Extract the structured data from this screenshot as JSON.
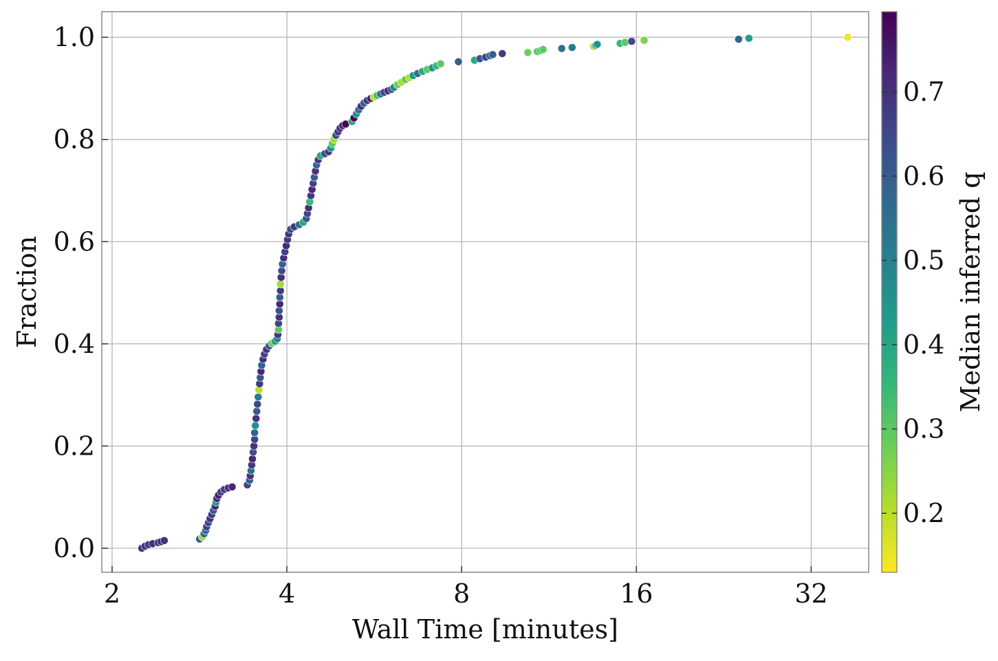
{
  "chart_data": {
    "type": "scatter",
    "xlabel": "Wall Time [minutes]",
    "ylabel": "Fraction",
    "x_scale": "log2",
    "xlim": [
      1.92,
      40.2
    ],
    "ylim": [
      -0.047,
      1.05
    ],
    "x_ticks": [
      2,
      4,
      8,
      16,
      32
    ],
    "x_tick_labels": [
      "2",
      "4",
      "8",
      "16",
      "32"
    ],
    "y_ticks": [
      0.0,
      0.2,
      0.4,
      0.6,
      0.8,
      1.0
    ],
    "y_tick_labels": [
      "0.0",
      "0.2",
      "0.4",
      "0.6",
      "0.8",
      "1.0"
    ],
    "grid": true,
    "colorbar": {
      "label": "Median inferred q",
      "colormap": "viridis_r",
      "range": [
        0.13,
        0.795
      ],
      "ticks": [
        0.2,
        0.3,
        0.4,
        0.5,
        0.6,
        0.7
      ],
      "tick_labels": [
        "0.2",
        "0.3",
        "0.4",
        "0.5",
        "0.6",
        "0.7"
      ]
    },
    "colormap_stops": [
      "#fde725",
      "#b5de2b",
      "#6ece58",
      "#35b779",
      "#1f9e89",
      "#26828e",
      "#31688e",
      "#3e4989",
      "#482878",
      "#440154"
    ],
    "series": [
      {
        "points": [
          [
            2.25,
            0.0,
            0.68
          ],
          [
            2.28,
            0.004,
            0.7
          ],
          [
            2.31,
            0.007,
            0.67
          ],
          [
            2.35,
            0.009,
            0.71
          ],
          [
            2.4,
            0.011,
            0.69
          ],
          [
            2.43,
            0.013,
            0.72
          ],
          [
            2.46,
            0.015,
            0.7
          ],
          [
            2.83,
            0.018,
            0.62
          ],
          [
            2.86,
            0.022,
            0.22
          ],
          [
            2.88,
            0.028,
            0.55
          ],
          [
            2.9,
            0.035,
            0.58
          ],
          [
            2.91,
            0.042,
            0.66
          ],
          [
            2.93,
            0.05,
            0.64
          ],
          [
            2.95,
            0.058,
            0.7
          ],
          [
            2.97,
            0.066,
            0.68
          ],
          [
            2.99,
            0.074,
            0.6
          ],
          [
            3.01,
            0.082,
            0.72
          ],
          [
            3.02,
            0.09,
            0.44
          ],
          [
            3.03,
            0.097,
            0.7
          ],
          [
            3.05,
            0.104,
            0.74
          ],
          [
            3.08,
            0.11,
            0.68
          ],
          [
            3.12,
            0.115,
            0.66
          ],
          [
            3.17,
            0.118,
            0.7
          ],
          [
            3.22,
            0.12,
            0.72
          ],
          [
            3.42,
            0.124,
            0.66
          ],
          [
            3.45,
            0.133,
            0.6
          ],
          [
            3.46,
            0.142,
            0.7
          ],
          [
            3.47,
            0.152,
            0.55
          ],
          [
            3.48,
            0.163,
            0.68
          ],
          [
            3.49,
            0.175,
            0.72
          ],
          [
            3.5,
            0.188,
            0.62
          ],
          [
            3.51,
            0.2,
            0.7
          ],
          [
            3.52,
            0.213,
            0.66
          ],
          [
            3.52,
            0.226,
            0.58
          ],
          [
            3.53,
            0.24,
            0.45
          ],
          [
            3.54,
            0.254,
            0.7
          ],
          [
            3.55,
            0.268,
            0.6
          ],
          [
            3.56,
            0.282,
            0.65
          ],
          [
            3.57,
            0.296,
            0.52
          ],
          [
            3.58,
            0.31,
            0.2
          ],
          [
            3.59,
            0.322,
            0.68
          ],
          [
            3.6,
            0.334,
            0.62
          ],
          [
            3.61,
            0.346,
            0.72
          ],
          [
            3.62,
            0.358,
            0.58
          ],
          [
            3.64,
            0.37,
            0.7
          ],
          [
            3.66,
            0.38,
            0.66
          ],
          [
            3.69,
            0.389,
            0.7
          ],
          [
            3.73,
            0.396,
            0.62
          ],
          [
            3.77,
            0.401,
            0.28
          ],
          [
            3.82,
            0.405,
            0.45
          ],
          [
            3.85,
            0.41,
            0.5
          ],
          [
            3.86,
            0.418,
            0.68
          ],
          [
            3.87,
            0.428,
            0.3
          ],
          [
            3.87,
            0.44,
            0.66
          ],
          [
            3.88,
            0.452,
            0.7
          ],
          [
            3.88,
            0.465,
            0.62
          ],
          [
            3.89,
            0.478,
            0.72
          ],
          [
            3.89,
            0.491,
            0.6
          ],
          [
            3.9,
            0.504,
            0.68
          ],
          [
            3.9,
            0.517,
            0.22
          ],
          [
            3.91,
            0.53,
            0.7
          ],
          [
            3.92,
            0.543,
            0.64
          ],
          [
            3.93,
            0.556,
            0.58
          ],
          [
            3.95,
            0.568,
            0.7
          ],
          [
            3.97,
            0.58,
            0.66
          ],
          [
            3.99,
            0.592,
            0.72
          ],
          [
            4.01,
            0.604,
            0.68
          ],
          [
            4.03,
            0.615,
            0.7
          ],
          [
            4.06,
            0.624,
            0.64
          ],
          [
            4.12,
            0.629,
            0.68
          ],
          [
            4.2,
            0.633,
            0.55
          ],
          [
            4.27,
            0.638,
            0.4
          ],
          [
            4.32,
            0.645,
            0.6
          ],
          [
            4.34,
            0.655,
            0.66
          ],
          [
            4.36,
            0.666,
            0.7
          ],
          [
            4.38,
            0.678,
            0.35
          ],
          [
            4.4,
            0.69,
            0.68
          ],
          [
            4.42,
            0.702,
            0.72
          ],
          [
            4.44,
            0.714,
            0.66
          ],
          [
            4.46,
            0.726,
            0.6
          ],
          [
            4.48,
            0.738,
            0.7
          ],
          [
            4.5,
            0.75,
            0.58
          ],
          [
            4.53,
            0.76,
            0.68
          ],
          [
            4.57,
            0.768,
            0.4
          ],
          [
            4.65,
            0.772,
            0.64
          ],
          [
            4.72,
            0.776,
            0.7
          ],
          [
            4.76,
            0.783,
            0.44
          ],
          [
            4.79,
            0.792,
            0.3
          ],
          [
            4.82,
            0.8,
            0.22
          ],
          [
            4.86,
            0.808,
            0.62
          ],
          [
            4.9,
            0.815,
            0.68
          ],
          [
            4.94,
            0.822,
            0.7
          ],
          [
            4.99,
            0.827,
            0.72
          ],
          [
            5.05,
            0.83,
            0.78
          ],
          [
            5.18,
            0.835,
            0.4
          ],
          [
            5.22,
            0.842,
            0.78
          ],
          [
            5.27,
            0.85,
            0.45
          ],
          [
            5.32,
            0.858,
            0.55
          ],
          [
            5.37,
            0.865,
            0.7
          ],
          [
            5.43,
            0.871,
            0.6
          ],
          [
            5.5,
            0.876,
            0.68
          ],
          [
            5.58,
            0.88,
            0.74
          ],
          [
            5.65,
            0.883,
            0.2
          ],
          [
            5.72,
            0.886,
            0.32
          ],
          [
            5.8,
            0.889,
            0.55
          ],
          [
            5.88,
            0.892,
            0.66
          ],
          [
            5.97,
            0.895,
            0.7
          ],
          [
            6.06,
            0.898,
            0.62
          ],
          [
            6.12,
            0.902,
            0.5
          ],
          [
            6.2,
            0.907,
            0.28
          ],
          [
            6.3,
            0.912,
            0.22
          ],
          [
            6.4,
            0.917,
            0.3
          ],
          [
            6.5,
            0.921,
            0.2
          ],
          [
            6.6,
            0.925,
            0.44
          ],
          [
            6.72,
            0.929,
            0.55
          ],
          [
            6.85,
            0.933,
            0.38
          ],
          [
            6.98,
            0.937,
            0.3
          ],
          [
            7.12,
            0.94,
            0.45
          ],
          [
            7.24,
            0.944,
            0.36
          ],
          [
            7.36,
            0.948,
            0.3
          ],
          [
            7.9,
            0.952,
            0.6
          ],
          [
            8.42,
            0.955,
            0.4
          ],
          [
            8.6,
            0.958,
            0.62
          ],
          [
            8.8,
            0.961,
            0.66
          ],
          [
            8.95,
            0.964,
            0.58
          ],
          [
            9.05,
            0.966,
            0.6
          ],
          [
            9.4,
            0.968,
            0.68
          ],
          [
            10.4,
            0.97,
            0.28
          ],
          [
            10.8,
            0.972,
            0.3
          ],
          [
            10.95,
            0.974,
            0.32
          ],
          [
            11.05,
            0.976,
            0.3
          ],
          [
            11.9,
            0.978,
            0.55
          ],
          [
            12.4,
            0.98,
            0.52
          ],
          [
            13.5,
            0.982,
            0.2
          ],
          [
            13.62,
            0.984,
            0.4
          ],
          [
            13.7,
            0.986,
            0.45
          ],
          [
            15.0,
            0.988,
            0.35
          ],
          [
            15.3,
            0.99,
            0.3
          ],
          [
            15.7,
            0.992,
            0.64
          ],
          [
            16.5,
            0.994,
            0.26
          ],
          [
            24.0,
            0.996,
            0.58
          ],
          [
            25.0,
            0.998,
            0.42
          ],
          [
            37.0,
            1.0,
            0.14
          ]
        ]
      }
    ]
  }
}
